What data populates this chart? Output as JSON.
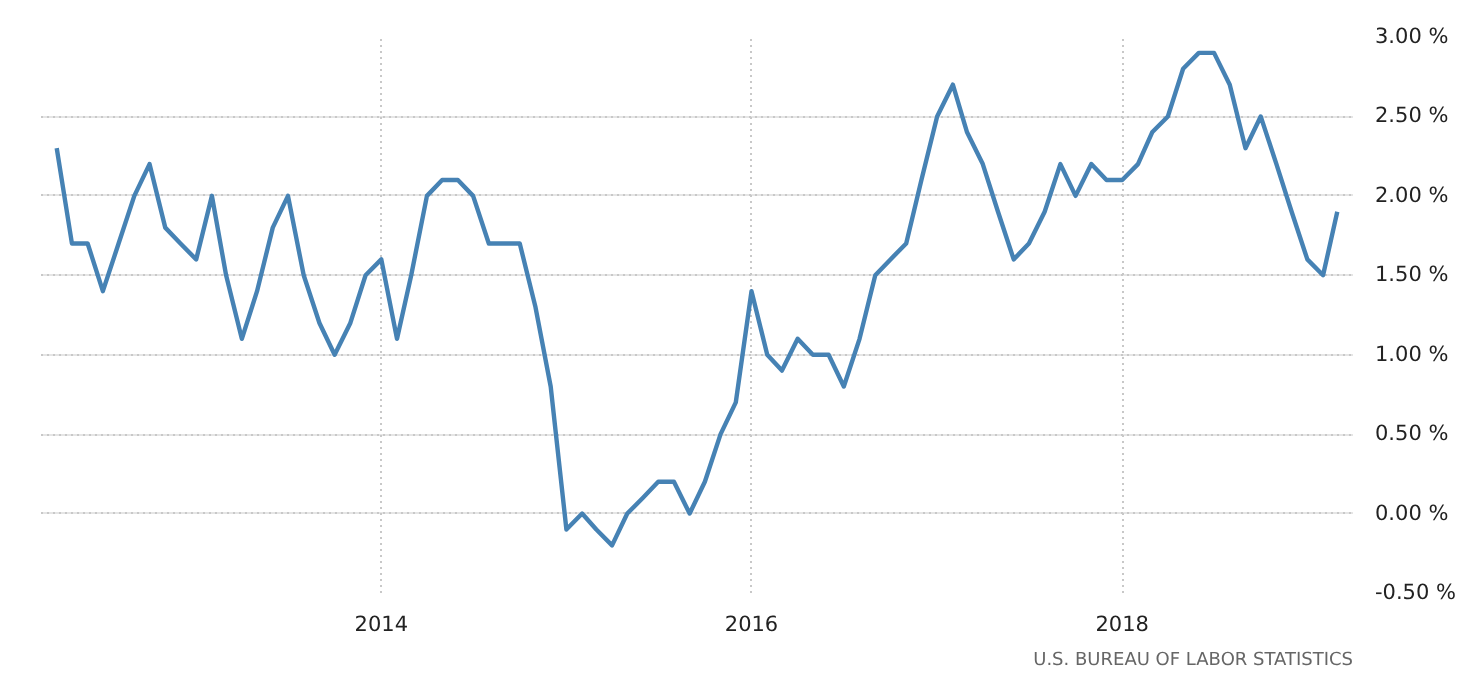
{
  "chart_data": {
    "type": "line",
    "x": [
      "2012-04",
      "2012-05",
      "2012-06",
      "2012-07",
      "2012-08",
      "2012-09",
      "2012-10",
      "2012-11",
      "2012-12",
      "2013-01",
      "2013-02",
      "2013-03",
      "2013-04",
      "2013-05",
      "2013-06",
      "2013-07",
      "2013-08",
      "2013-09",
      "2013-10",
      "2013-11",
      "2013-12",
      "2014-01",
      "2014-02",
      "2014-03",
      "2014-04",
      "2014-05",
      "2014-06",
      "2014-07",
      "2014-08",
      "2014-09",
      "2014-10",
      "2014-11",
      "2014-12",
      "2015-01",
      "2015-02",
      "2015-03",
      "2015-04",
      "2015-05",
      "2015-06",
      "2015-07",
      "2015-08",
      "2015-09",
      "2015-10",
      "2015-11",
      "2015-12",
      "2016-01",
      "2016-02",
      "2016-03",
      "2016-04",
      "2016-05",
      "2016-06",
      "2016-07",
      "2016-08",
      "2016-09",
      "2016-10",
      "2016-11",
      "2016-12",
      "2017-01",
      "2017-02",
      "2017-03",
      "2017-04",
      "2017-05",
      "2017-06",
      "2017-07",
      "2017-08",
      "2017-09",
      "2017-10",
      "2017-11",
      "2017-12",
      "2018-01",
      "2018-02",
      "2018-03",
      "2018-04",
      "2018-05",
      "2018-06",
      "2018-07",
      "2018-08",
      "2018-09",
      "2018-10",
      "2018-11",
      "2018-12",
      "2019-01",
      "2019-02",
      "2019-03"
    ],
    "series": [
      {
        "color": "#4682b4",
        "values": [
          2.3,
          1.7,
          1.7,
          1.4,
          1.7,
          2.0,
          2.2,
          1.8,
          1.7,
          1.6,
          2.0,
          1.5,
          1.1,
          1.4,
          1.8,
          2.0,
          1.5,
          1.2,
          1.0,
          1.2,
          1.5,
          1.6,
          1.1,
          1.5,
          2.0,
          2.1,
          2.1,
          2.0,
          1.7,
          1.7,
          1.7,
          1.3,
          0.8,
          -0.1,
          0.0,
          -0.1,
          -0.2,
          0.0,
          0.1,
          0.2,
          0.2,
          0.0,
          0.2,
          0.5,
          0.7,
          1.4,
          1.0,
          0.9,
          1.1,
          1.0,
          1.0,
          0.8,
          1.1,
          1.5,
          1.6,
          1.7,
          2.1,
          2.5,
          2.7,
          2.4,
          2.2,
          1.9,
          1.6,
          1.7,
          1.9,
          2.2,
          2.0,
          2.2,
          2.1,
          2.1,
          2.2,
          2.4,
          2.5,
          2.8,
          2.9,
          2.9,
          2.7,
          2.3,
          2.5,
          2.2,
          1.9,
          1.6,
          1.5,
          1.9
        ]
      }
    ],
    "xlim": [
      "2012-03",
      "2019-04"
    ],
    "xticks": [
      "2014",
      "2016",
      "2018"
    ],
    "ylim": [
      -0.5,
      3.0
    ],
    "yticks": [
      {
        "value": -0.5,
        "label": "-0.50 %"
      },
      {
        "value": 0.0,
        "label": "0.00 %"
      },
      {
        "value": 0.5,
        "label": "0.50 %"
      },
      {
        "value": 1.0,
        "label": "1.00 %"
      },
      {
        "value": 1.5,
        "label": "1.50 %"
      },
      {
        "value": 2.0,
        "label": "2.00 %"
      },
      {
        "value": 2.5,
        "label": "2.50 %"
      },
      {
        "value": 3.0,
        "label": "3.00 %"
      }
    ],
    "grid": true,
    "marker": "none",
    "line_style": "solid",
    "annotations": [
      "U.S. BUREAU OF LABOR STATISTICS"
    ]
  }
}
